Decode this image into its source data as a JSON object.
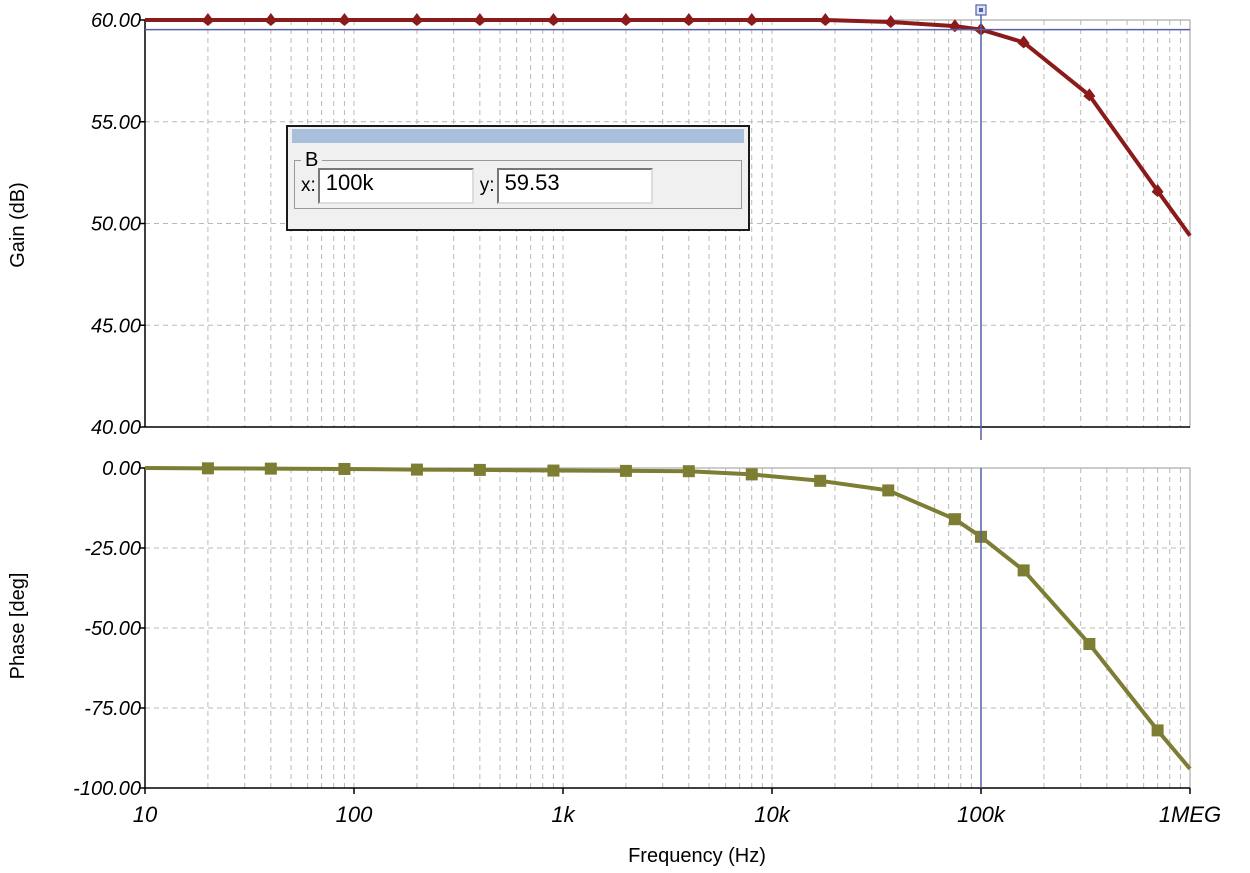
{
  "chart_data": [
    {
      "type": "line",
      "ylabel": "Gain (dB)",
      "xlabel": "",
      "x_scale": "log",
      "xlim": [
        10,
        1000000
      ],
      "ylim": [
        40,
        60
      ],
      "y_ticks": [
        "60.00",
        "55.00",
        "50.00",
        "45.00",
        "40.00"
      ],
      "y_tick_values": [
        60,
        55,
        50,
        45,
        40
      ],
      "grid": true,
      "marker": "diamond",
      "series": [
        {
          "color": "#8b1a1a",
          "x": [
            10,
            20,
            40,
            90,
            200,
            400,
            900,
            2000,
            4000,
            8000,
            18000,
            37000,
            75000,
            100000,
            160000,
            330000,
            700000,
            1000000
          ],
          "y": [
            60.0,
            60.0,
            60.0,
            60.0,
            60.0,
            60.0,
            60.0,
            60.0,
            60.0,
            60.0,
            60.0,
            59.9,
            59.7,
            59.53,
            58.9,
            56.3,
            51.6,
            49.4
          ]
        }
      ]
    },
    {
      "type": "line",
      "ylabel": "Phase [deg]",
      "xlabel": "Frequency (Hz)",
      "x_scale": "log",
      "xlim": [
        10,
        1000000
      ],
      "ylim": [
        -100,
        0
      ],
      "y_ticks": [
        "0.00",
        "-25.00",
        "-50.00",
        "-75.00",
        "-100.00"
      ],
      "y_tick_values": [
        0,
        -25,
        -50,
        -75,
        -100
      ],
      "x_ticks": [
        "10",
        "100",
        "1k",
        "10k",
        "100k",
        "1MEG"
      ],
      "x_tick_values": [
        10,
        100,
        1000,
        10000,
        100000,
        1000000
      ],
      "grid": true,
      "marker": "square",
      "series": [
        {
          "color": "#7d7d33",
          "x": [
            10,
            20,
            40,
            90,
            200,
            400,
            900,
            2000,
            4000,
            8000,
            17000,
            36000,
            75000,
            100000,
            160000,
            330000,
            700000,
            1000000
          ],
          "y": [
            0,
            -0.1,
            -0.2,
            -0.3,
            -0.5,
            -0.6,
            -0.8,
            -0.9,
            -1.0,
            -2.0,
            -4.0,
            -7.0,
            -16.0,
            -21.5,
            -32.0,
            -55.0,
            -82.0,
            -94.0
          ]
        }
      ]
    }
  ],
  "cursor": {
    "x_value": 100000,
    "name": "B",
    "x_label": "x:",
    "x_text": "100k",
    "y_label": "y:",
    "y_text": "59.53",
    "line_color": "#5560a8",
    "gain_marker_y": 59.53
  }
}
